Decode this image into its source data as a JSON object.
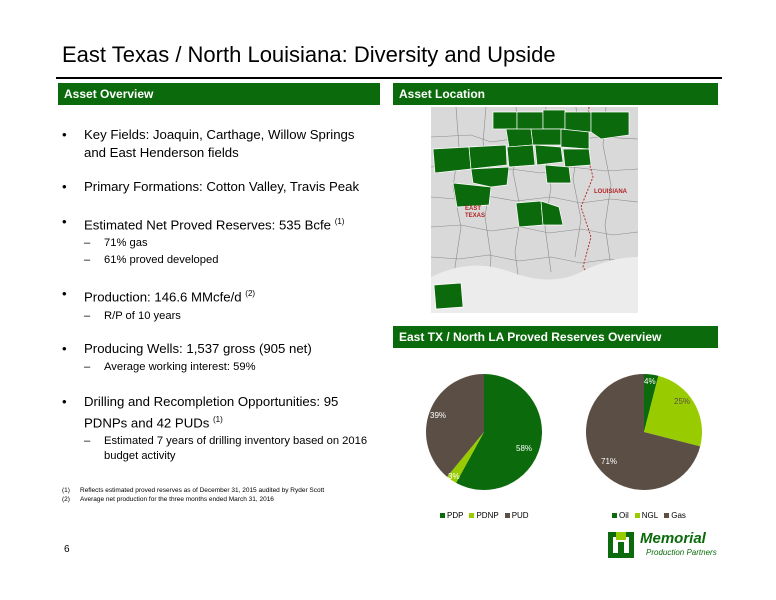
{
  "title": "East Texas / North Louisiana: Diversity and Upside",
  "panels": {
    "overview_header": "Asset Overview",
    "location_header": "Asset Location",
    "reserves_header": "East TX / North LA Proved Reserves Overview"
  },
  "bullets": [
    {
      "text": "Key Fields: Joaquin, Carthage, Willow Springs and East Henderson fields",
      "sup": "",
      "subs": []
    },
    {
      "text": "Primary Formations: Cotton Valley, Travis Peak",
      "sup": "",
      "subs": []
    },
    {
      "text": "Estimated Net Proved Reserves: 535 Bcfe",
      "sup": "(1)",
      "subs": [
        "71% gas",
        "61% proved developed"
      ]
    },
    {
      "text": "Production: 146.6 MMcfe/d",
      "sup": "(2)",
      "subs": [
        "R/P of 10 years"
      ]
    },
    {
      "text": "Producing Wells: 1,537 gross (905 net)",
      "sup": "",
      "subs": [
        "Average working interest: 59%"
      ]
    },
    {
      "text": "Drilling and Recompletion Opportunities: 95 PDNPs and 42 PUDs",
      "sup": "(1)",
      "subs": [
        "Estimated 7 years of drilling inventory based on 2016 budget activity"
      ]
    }
  ],
  "bullet_marker": "•",
  "sub_marker": "–",
  "footnotes": [
    {
      "num": "(1)",
      "text": "Reflects estimated proved reserves as of December 31, 2015 audited by Ryder Scott"
    },
    {
      "num": "(2)",
      "text": "Average net production for the three months ended March 31, 2016"
    }
  ],
  "page_number": "6",
  "logo": {
    "name": "Memorial",
    "sub": "Production Partners"
  },
  "colors": {
    "green": "#0b6a0b",
    "light_green": "#99cc00",
    "brown": "#5b4e45",
    "map_bg": "#d8d8d8",
    "map_lines": "#7a7a7a",
    "map_river": "#b22222"
  },
  "map_labels": [
    "EAST",
    "TEXAS",
    "LOUISIANA"
  ],
  "chart_data": [
    {
      "type": "pie",
      "categories": [
        "PDP",
        "PDNP",
        "PUD"
      ],
      "values": [
        58,
        3,
        39
      ],
      "labels": [
        "58%",
        "3%",
        "39%"
      ],
      "legend": "bottom"
    },
    {
      "type": "pie",
      "categories": [
        "Oil",
        "NGL",
        "Gas"
      ],
      "values": [
        4,
        25,
        71
      ],
      "labels": [
        "4%",
        "25%",
        "71%"
      ],
      "legend": "bottom"
    }
  ]
}
